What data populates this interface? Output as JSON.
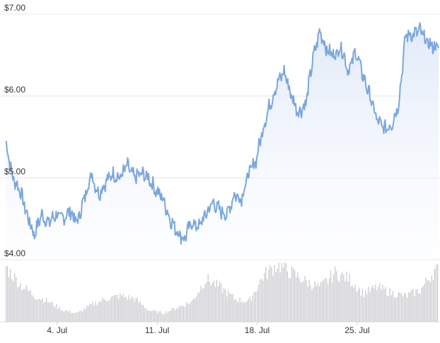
{
  "chart_data": {
    "type": "area",
    "title": "",
    "xlabel": "",
    "ylabel": "",
    "ylim": [
      4,
      7
    ],
    "y_ticks": [
      {
        "value": 4,
        "label": "$4.00"
      },
      {
        "value": 5,
        "label": "$5.00"
      },
      {
        "value": 6,
        "label": "$6.00"
      },
      {
        "value": 7,
        "label": "$7.00"
      }
    ],
    "x_range_days": [
      0,
      30.3
    ],
    "x_ticks": [
      {
        "day": 3.6,
        "label": "4. Jul"
      },
      {
        "day": 10.6,
        "label": "11. Jul"
      },
      {
        "day": 17.6,
        "label": "18. Jul"
      },
      {
        "day": 24.6,
        "label": "25. Jul"
      }
    ],
    "grid": true,
    "legend": "none",
    "colors": {
      "price_line": "#7ba7dd",
      "price_fill_top": "#dfe9f8",
      "price_fill_bottom": "#fbfcff",
      "volume_bar": "#c7c7cc",
      "gridline": "#e6e6e6"
    },
    "series": [
      {
        "key": "price",
        "x": [
          0,
          0.5,
          1,
          1.5,
          2,
          2.5,
          3,
          3.5,
          4,
          4.5,
          5,
          5.5,
          6,
          6.5,
          7,
          7.5,
          8,
          8.5,
          9,
          9.5,
          10,
          10.5,
          11,
          11.5,
          12,
          12.5,
          13,
          13.5,
          14,
          14.5,
          15,
          15.5,
          16,
          16.5,
          17,
          17.5,
          18,
          18.5,
          19,
          19.5,
          20,
          20.5,
          21,
          21.5,
          22,
          22.5,
          23,
          23.5,
          24,
          24.5,
          25,
          25.5,
          26,
          26.5,
          27,
          27.5,
          28,
          28.5,
          29,
          29.5,
          30
        ],
        "values": [
          5.45,
          5.0,
          4.85,
          4.55,
          4.3,
          4.55,
          4.45,
          4.55,
          4.5,
          4.6,
          4.45,
          4.75,
          5.05,
          4.8,
          4.95,
          5.05,
          5.0,
          5.15,
          5.0,
          5.05,
          5.0,
          4.85,
          4.75,
          4.5,
          4.35,
          4.25,
          4.45,
          4.4,
          4.55,
          4.7,
          4.6,
          4.55,
          4.8,
          4.75,
          5.05,
          5.2,
          5.6,
          5.9,
          6.15,
          6.3,
          6.0,
          5.8,
          5.9,
          6.45,
          6.8,
          6.55,
          6.5,
          6.6,
          6.3,
          6.55,
          6.25,
          6.0,
          5.7,
          5.6,
          5.65,
          5.9,
          6.75,
          6.75,
          6.8,
          6.65,
          6.6
        ]
      },
      {
        "key": "volume",
        "x": [
          0,
          1,
          2,
          3,
          4,
          5,
          6,
          7,
          8,
          9,
          10,
          11,
          12,
          13,
          14,
          15,
          16,
          17,
          18,
          19,
          20,
          21,
          22,
          23,
          24,
          25,
          26,
          27,
          28,
          29,
          30
        ],
        "values": [
          0.95,
          0.65,
          0.45,
          0.35,
          0.2,
          0.15,
          0.3,
          0.4,
          0.45,
          0.4,
          0.2,
          0.15,
          0.25,
          0.35,
          0.75,
          0.6,
          0.4,
          0.35,
          0.8,
          1.0,
          0.85,
          0.7,
          0.6,
          0.85,
          0.75,
          0.5,
          0.6,
          0.5,
          0.45,
          0.55,
          0.9
        ]
      }
    ]
  }
}
